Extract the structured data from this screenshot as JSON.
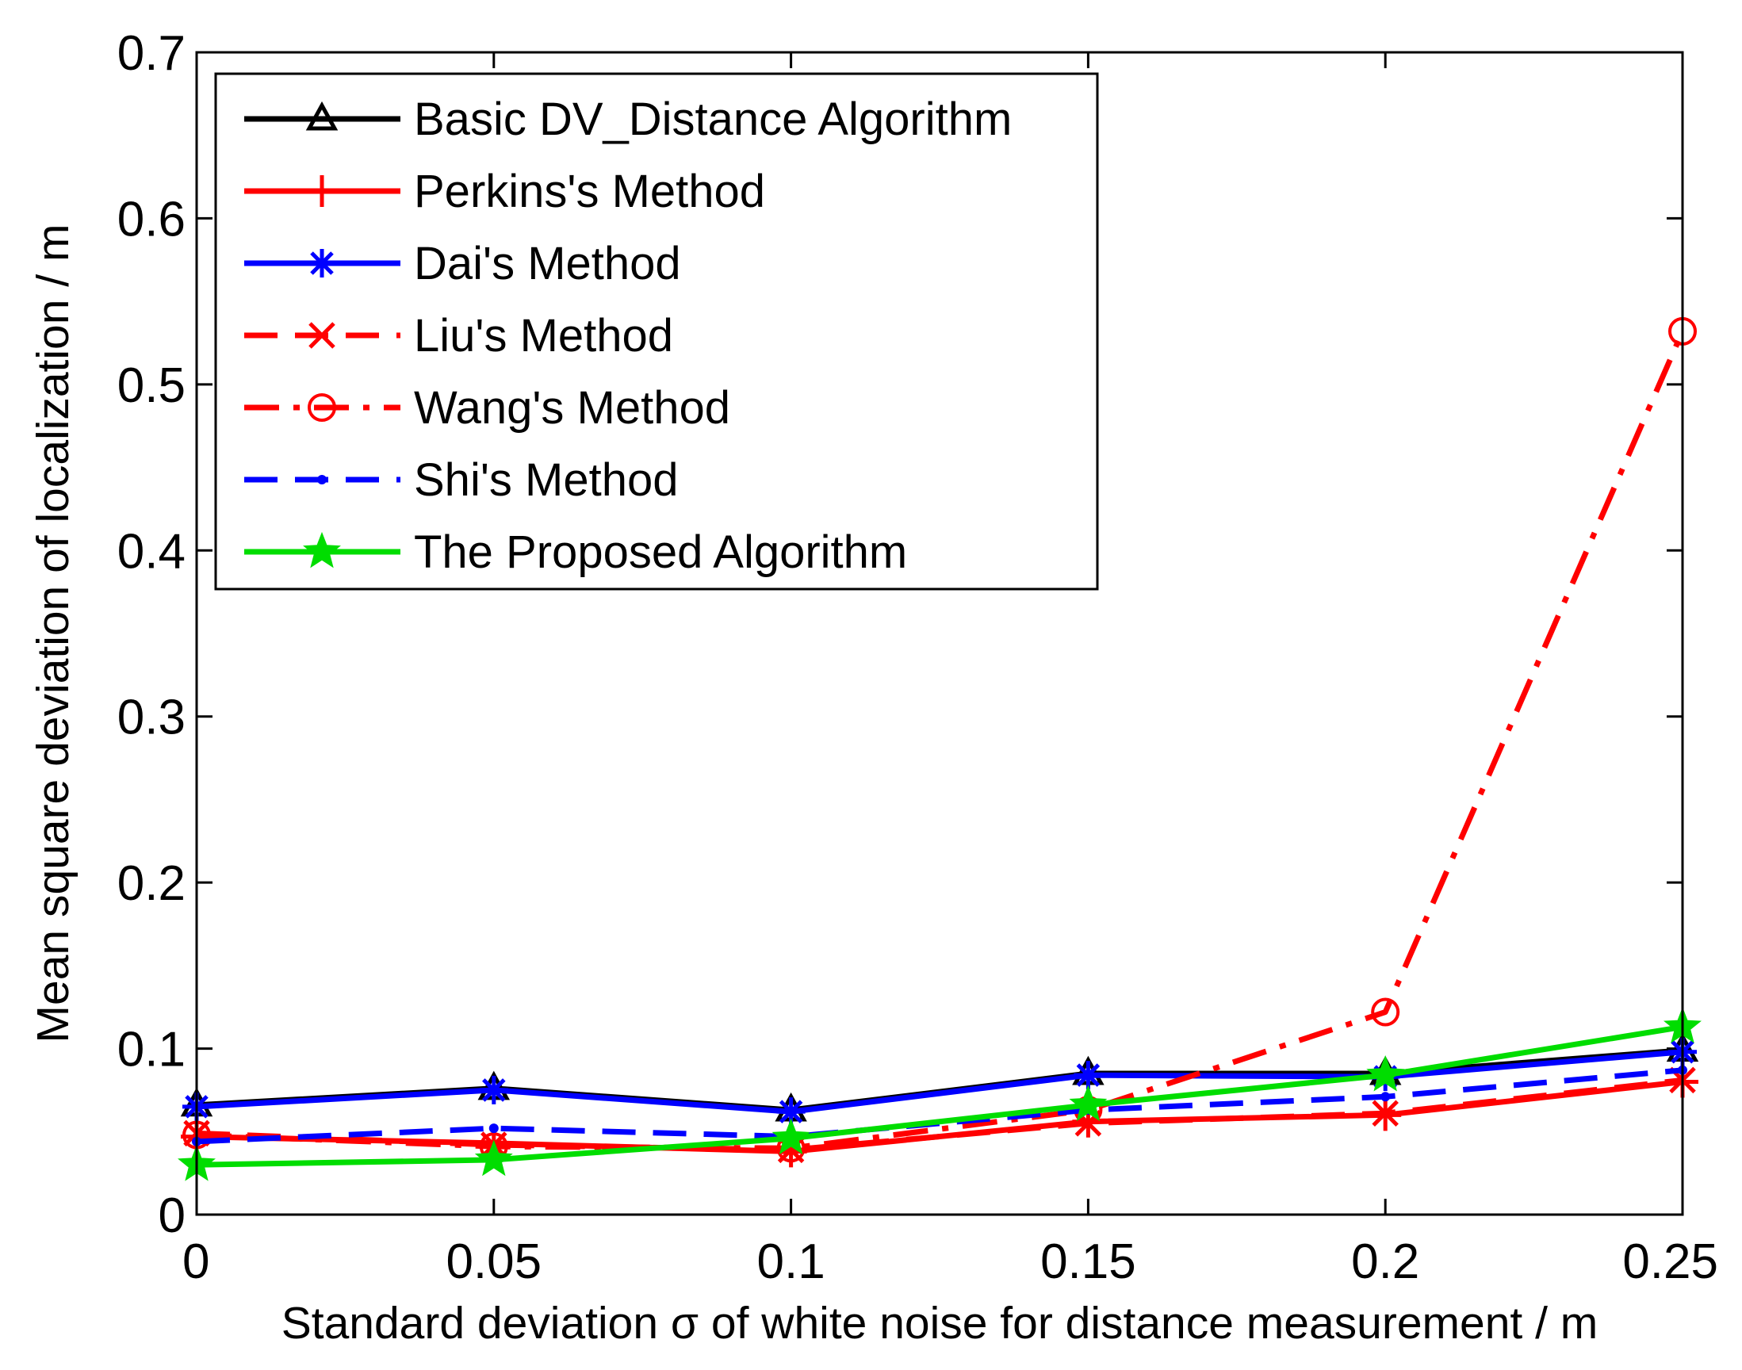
{
  "chart_data": {
    "type": "line",
    "title": "",
    "xlabel": "Standard deviation σ of white noise for distance measurement / m",
    "ylabel": "Mean square deviation of localization / m",
    "xlim": [
      0,
      0.25
    ],
    "ylim": [
      0,
      0.7
    ],
    "grid": false,
    "legend_position": "top-left",
    "x": [
      0,
      0.05,
      0.1,
      0.15,
      0.2,
      0.25
    ],
    "x_tick_labels": [
      "0",
      "0.05",
      "0.1",
      "0.15",
      "0.2",
      "0.25"
    ],
    "y_tick_values": [
      0,
      0.1,
      0.2,
      0.3,
      0.4,
      0.5,
      0.6,
      0.7
    ],
    "y_tick_labels": [
      "0",
      "0.1",
      "0.2",
      "0.3",
      "0.4",
      "0.5",
      "0.6",
      "0.7"
    ],
    "series": [
      {
        "name": "Basic DV_Distance Algorithm",
        "color": "#000000",
        "dash": "solid",
        "marker": "triangle",
        "values": [
          0.066,
          0.076,
          0.063,
          0.085,
          0.085,
          0.099
        ]
      },
      {
        "name": "Perkins's Method",
        "color": "#ff0000",
        "dash": "solid",
        "marker": "plus",
        "values": [
          0.047,
          0.043,
          0.038,
          0.056,
          0.06,
          0.08
        ]
      },
      {
        "name": "Dai's Method",
        "color": "#0000ff",
        "dash": "solid",
        "marker": "star",
        "values": [
          0.065,
          0.075,
          0.062,
          0.084,
          0.083,
          0.098
        ]
      },
      {
        "name": "Liu's Method",
        "color": "#ff0000",
        "dash": "dashed",
        "marker": "x",
        "values": [
          0.049,
          0.042,
          0.039,
          0.055,
          0.061,
          0.081
        ]
      },
      {
        "name": "Wang's Method",
        "color": "#ff0000",
        "dash": "dashdot",
        "marker": "circle",
        "values": [
          0.048,
          0.041,
          0.04,
          0.063,
          0.122,
          0.532
        ]
      },
      {
        "name": "Shi's Method",
        "color": "#0000ff",
        "dash": "dashed",
        "marker": "point",
        "values": [
          0.044,
          0.052,
          0.047,
          0.063,
          0.071,
          0.087
        ]
      },
      {
        "name": "The Proposed Algorithm",
        "color": "#00dd00",
        "dash": "solid",
        "marker": "pentagram",
        "values": [
          0.03,
          0.033,
          0.046,
          0.066,
          0.084,
          0.113
        ]
      }
    ]
  }
}
